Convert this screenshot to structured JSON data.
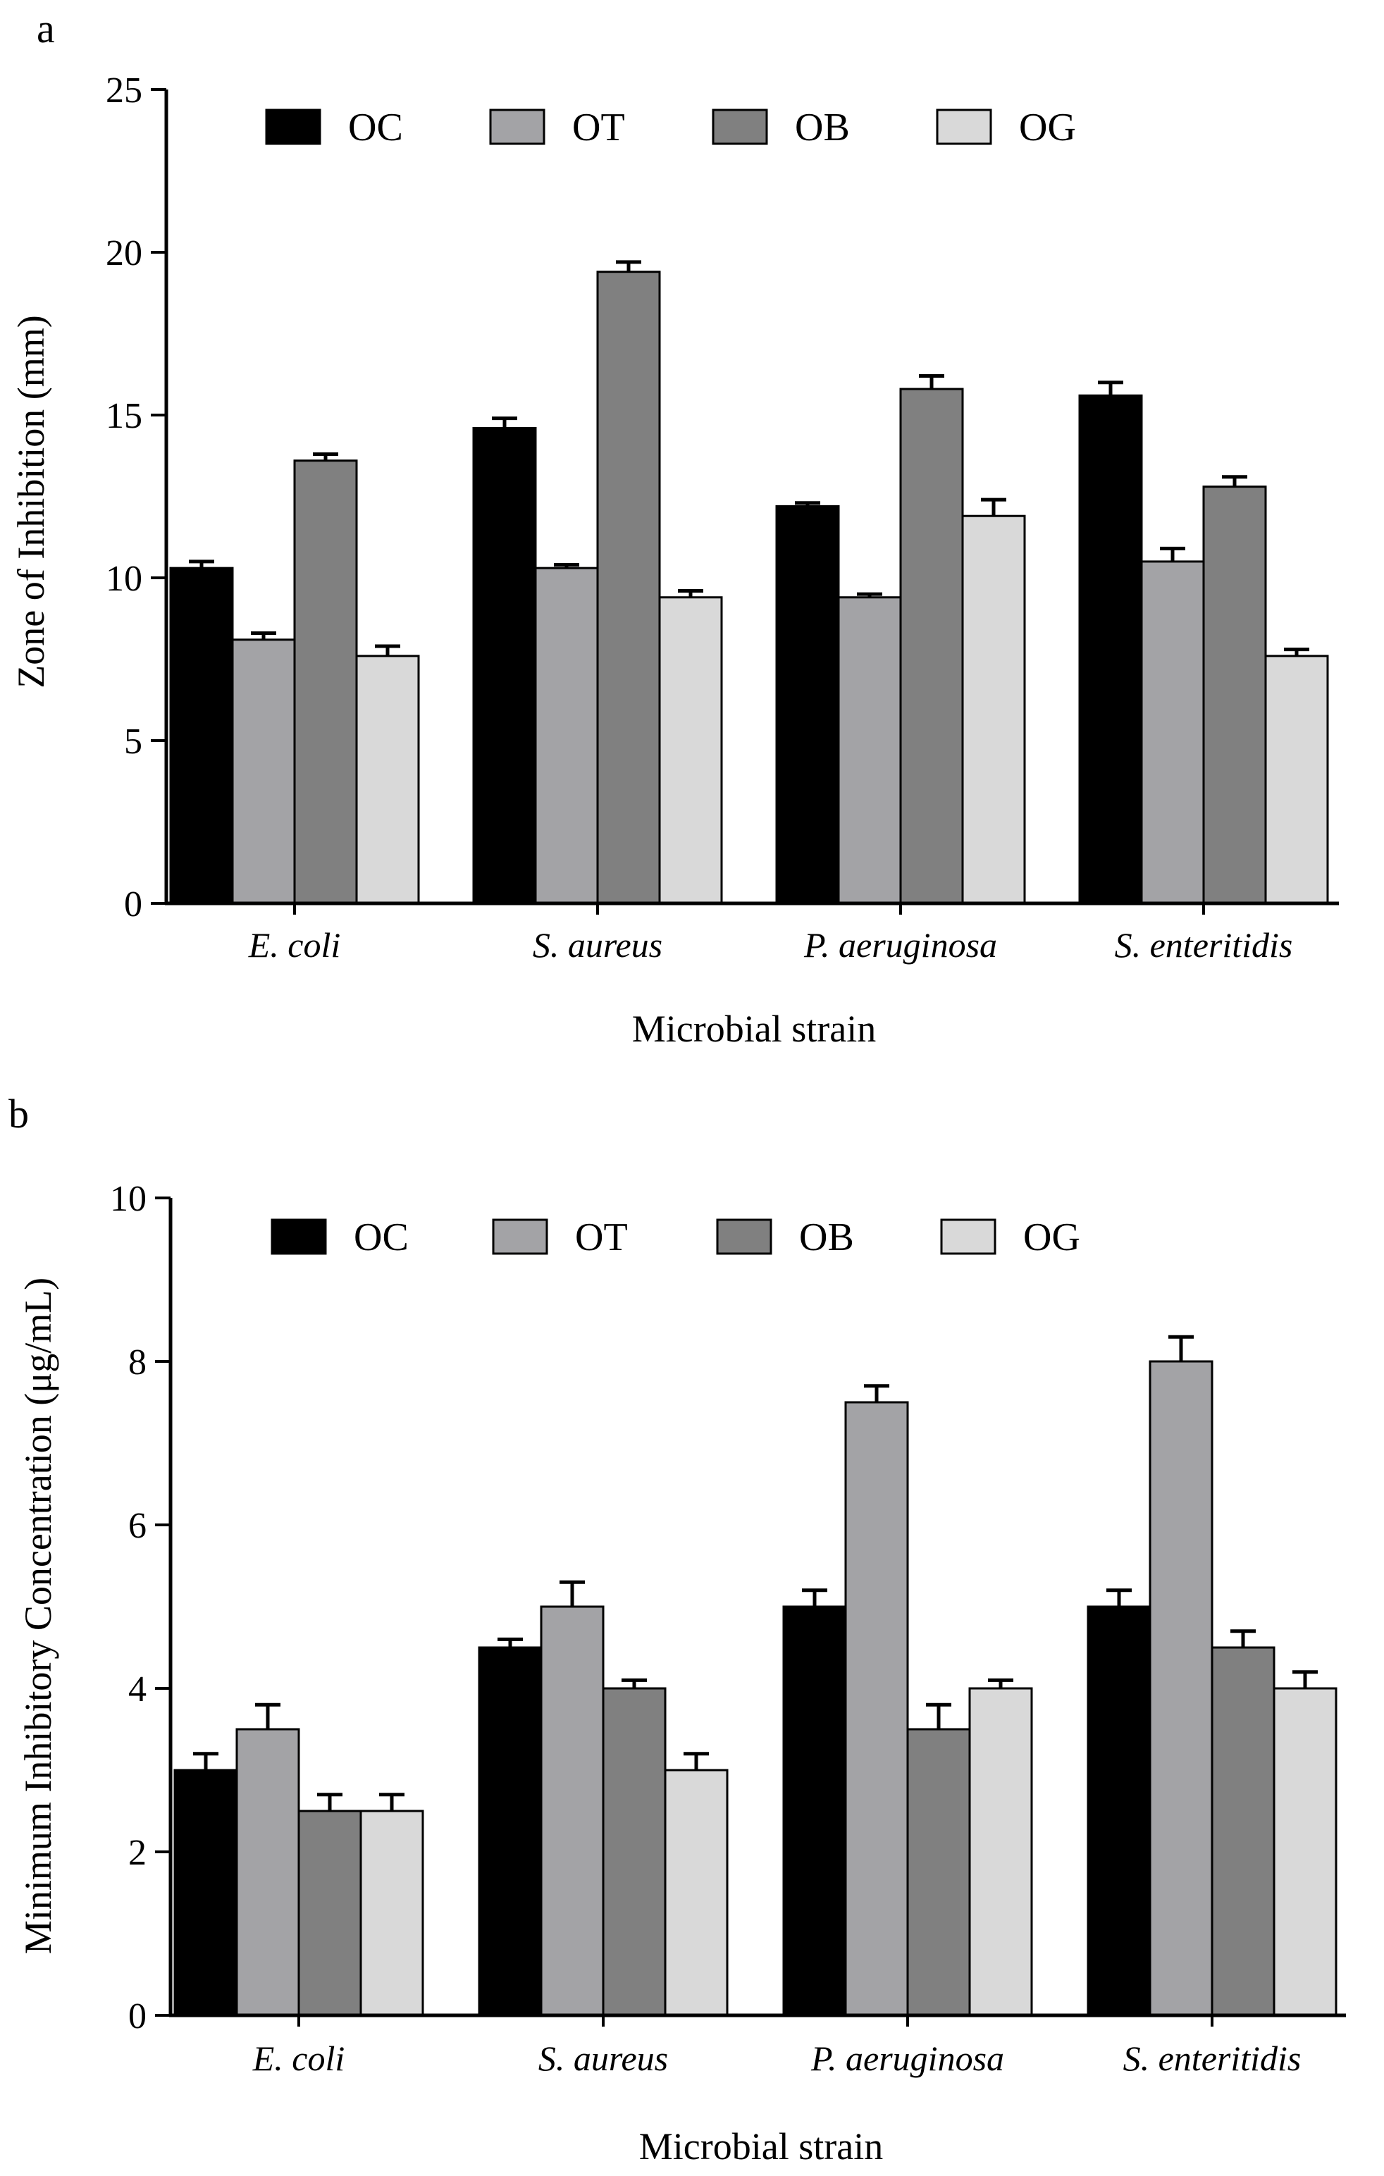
{
  "chart_data": [
    {
      "panel": "a",
      "type": "bar",
      "title": "",
      "xlabel": "Microbial strain",
      "ylabel": "Zone of Inhibition (mm)",
      "ylim": [
        0,
        25
      ],
      "yticks": [
        0,
        5,
        10,
        15,
        20,
        25
      ],
      "grid": false,
      "legend_position": "top",
      "categories": [
        "E. coli",
        "S. aureus",
        "P. aeruginosa",
        "S. enteritidis"
      ],
      "series": [
        {
          "name": "OC",
          "color": "#000000",
          "values": [
            10.3,
            14.6,
            12.2,
            15.6
          ],
          "errors": [
            0.2,
            0.3,
            0.1,
            0.4
          ]
        },
        {
          "name": "OT",
          "color": "#a3a3a6",
          "values": [
            8.1,
            10.3,
            9.4,
            10.5
          ],
          "errors": [
            0.2,
            0.1,
            0.1,
            0.4
          ]
        },
        {
          "name": "OB",
          "color": "#808080",
          "values": [
            13.6,
            19.4,
            15.8,
            12.8
          ],
          "errors": [
            0.2,
            0.3,
            0.4,
            0.3
          ]
        },
        {
          "name": "OG",
          "color": "#d9d9d9",
          "values": [
            7.6,
            9.4,
            11.9,
            7.6
          ],
          "errors": [
            0.3,
            0.2,
            0.5,
            0.2
          ]
        }
      ]
    },
    {
      "panel": "b",
      "type": "bar",
      "title": "",
      "xlabel": "Microbial strain",
      "ylabel": "Minimum Inhibitory Concentration (μg/mL)",
      "ylim": [
        0,
        10
      ],
      "yticks": [
        0,
        2,
        4,
        6,
        8,
        10
      ],
      "grid": false,
      "legend_position": "top",
      "categories": [
        "E. coli",
        "S. aureus",
        "P. aeruginosa",
        "S. enteritidis"
      ],
      "series": [
        {
          "name": "OC",
          "color": "#000000",
          "values": [
            3.0,
            4.5,
            5.0,
            5.0
          ],
          "errors": [
            0.2,
            0.1,
            0.2,
            0.2
          ]
        },
        {
          "name": "OT",
          "color": "#a3a3a6",
          "values": [
            3.5,
            5.0,
            7.5,
            8.0
          ],
          "errors": [
            0.3,
            0.3,
            0.2,
            0.3
          ]
        },
        {
          "name": "OB",
          "color": "#808080",
          "values": [
            2.5,
            4.0,
            3.5,
            4.5
          ],
          "errors": [
            0.2,
            0.1,
            0.3,
            0.2
          ]
        },
        {
          "name": "OG",
          "color": "#d9d9d9",
          "values": [
            2.5,
            3.0,
            4.0,
            4.0
          ],
          "errors": [
            0.2,
            0.2,
            0.1,
            0.2
          ]
        }
      ]
    }
  ]
}
